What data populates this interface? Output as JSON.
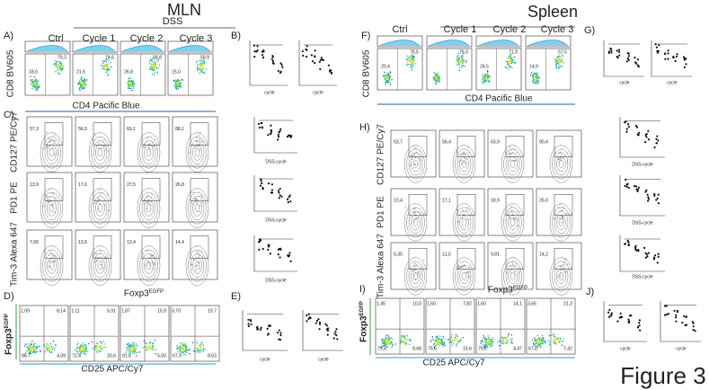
{
  "mln": {
    "title": "MLN",
    "dss": "DSS",
    "columns": [
      "Ctrl",
      "Cycle 1",
      "Cycle 2",
      "Cycle 3"
    ]
  },
  "spleen": {
    "title": "Spleen",
    "columns": [
      "Ctrl",
      "Cycle 1",
      "Cycle 2",
      "Cycle 3"
    ]
  },
  "figure_label": "Figure 3",
  "panels": {
    "A": "A)",
    "B": "B)",
    "C": "C)",
    "D": "D)",
    "E": "E)",
    "F": "F)",
    "G": "G)",
    "H": "H)",
    "I": "I)",
    "J": "J)"
  },
  "axis_labels": {
    "cd8": "CD8 BV605",
    "cd4": "CD4 Pacific Blue",
    "cd127": "CD127 PE/Cy7",
    "pd1": "PD1 PE",
    "tim3": "Tim-3 Alexa 647",
    "foxp3": "Foxp3",
    "egfp": "EGFP",
    "cd25": "CD25 APC/Cy7",
    "dss_cycle": "DSS-cycle",
    "cycle": "cycle"
  },
  "gates": {
    "A": [
      [
        "18,6",
        "79,3"
      ],
      [
        "21,6",
        "74,6"
      ],
      [
        "26,8",
        "68,8"
      ],
      [
        "15,0",
        "59,9"
      ]
    ],
    "F": [
      [
        "20,4",
        "76,5"
      ],
      [
        "",
        "76,0"
      ],
      [
        "24,5",
        "71,9"
      ],
      [
        "14,9",
        "57,5"
      ]
    ],
    "C": [
      [
        "57,3",
        "56,5",
        "69,1",
        "88,1"
      ],
      [
        "13,9",
        "17,6",
        "27,5",
        "26,8"
      ],
      [
        "7,00",
        "13,5",
        "13,4",
        "14,4"
      ]
    ],
    "H": [
      [
        "53,7",
        "56,4",
        "63,9",
        "90,4"
      ],
      [
        "10,4",
        "17,1",
        "18,9",
        "26,0"
      ],
      [
        "5,35",
        "11,0",
        "9,81",
        "14,2"
      ]
    ],
    "D": [
      [
        "1,09",
        "8,14",
        "88,7",
        "4,09"
      ],
      [
        "1,11",
        "5,91",
        "72,4",
        "20,6"
      ],
      [
        "1,87",
        "10,9",
        "81,6",
        "5,50"
      ],
      [
        "3,70",
        "19,7",
        "67,9",
        "8,63"
      ]
    ],
    "I": [
      [
        "1,45",
        "10,0",
        "79,8",
        "8,68"
      ],
      [
        "1,60",
        "7,82",
        "75,6",
        "15,6"
      ],
      [
        "1,60",
        "14,1",
        "79,6",
        "4,47"
      ],
      [
        "3,65",
        "21,3",
        "67,8",
        "7,42"
      ]
    ]
  }
}
